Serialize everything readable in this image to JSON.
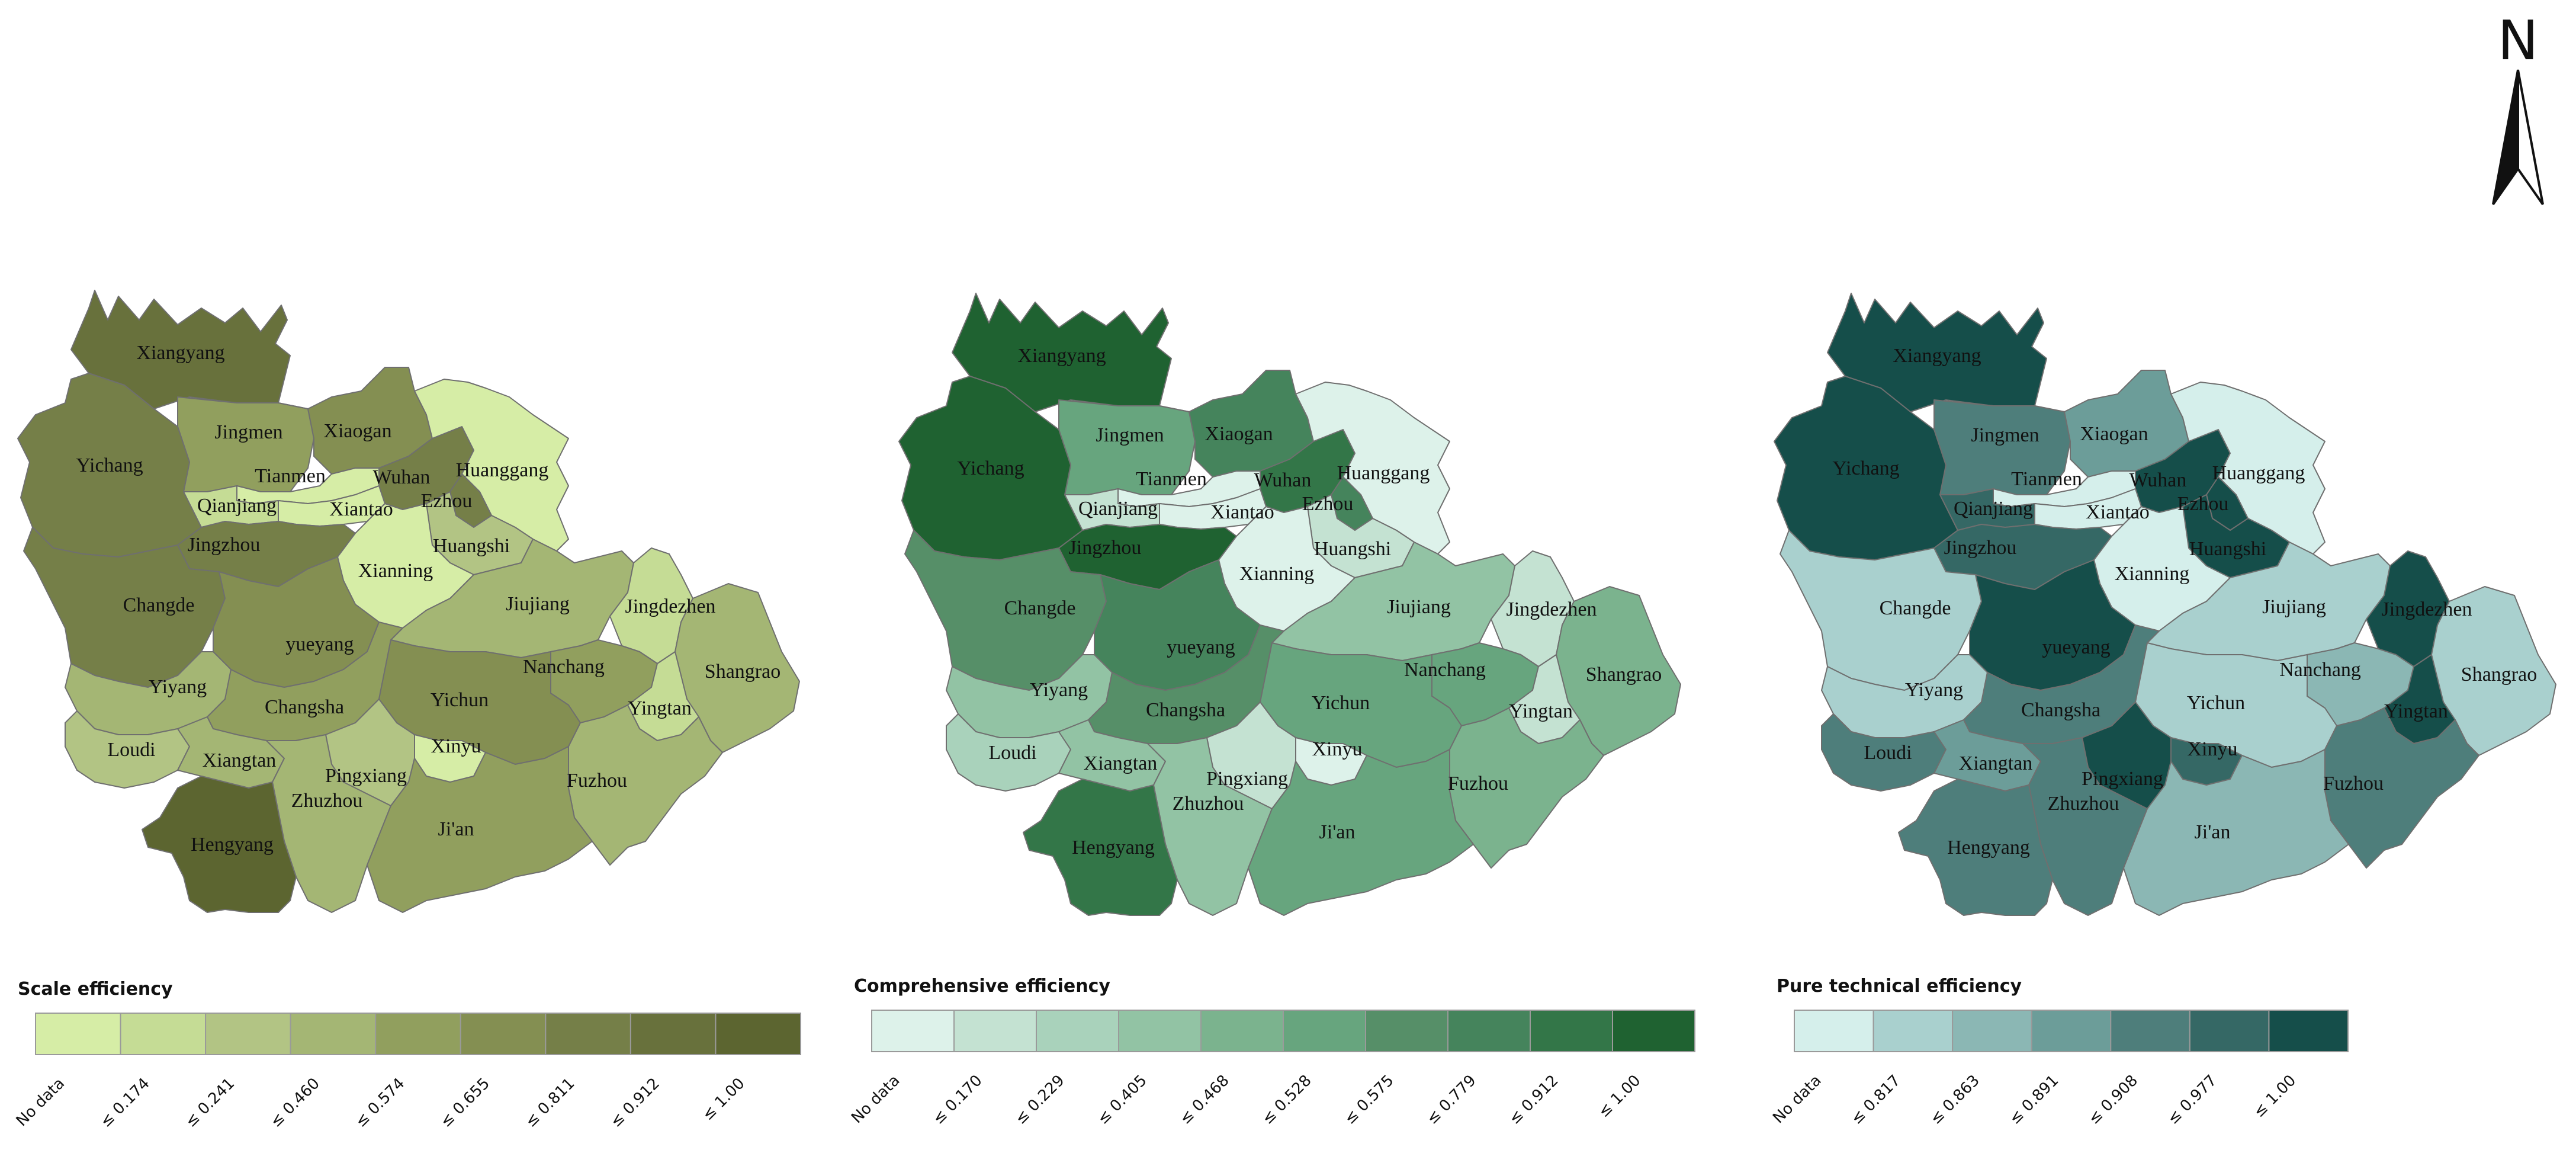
{
  "cities": [
    "Xiangyang",
    "Jingmen",
    "Xiaogan",
    "Yichang",
    "Tianmen",
    "Wuhan",
    "Huanggang",
    "Qianjiang",
    "Xiantao",
    "Ezhou",
    "Jingzhou",
    "Huangshi",
    "Xianning",
    "Changde",
    "yueyang",
    "Jiujiang",
    "Jingdezhen",
    "Nanchang",
    "Shangrao",
    "Yiyang",
    "Changsha",
    "Yichun",
    "Yingtan",
    "Loudi",
    "Xiangtan",
    "Xinyu",
    "Pingxiang",
    "Zhuzhou",
    "Fuzhou",
    "Hengyang",
    "Ji'an"
  ],
  "north_arrow": {
    "letter": "N"
  },
  "maps": [
    {
      "id": "scale",
      "legend": {
        "title": "Scale efficiency",
        "labels": [
          "No data",
          "≤ 0.174",
          "≤ 0.241",
          "≤ 0.460",
          "≤ 0.574",
          "≤ 0.655",
          "≤ 0.811",
          "≤ 0.912",
          "≤ 1.00"
        ],
        "colors": [
          "#d6eda6",
          "#c5dc95",
          "#b2c484",
          "#a4b674",
          "#919f5e",
          "#848f52",
          "#757f48",
          "#68713c",
          "#5c6530"
        ]
      },
      "city_class": {
        "Xiangyang": 7,
        "Jingmen": 4,
        "Xiaogan": 5,
        "Yichang": 6,
        "Tianmen": 0,
        "Wuhan": 6,
        "Huanggang": 0,
        "Qianjiang": 1,
        "Xiantao": 0,
        "Ezhou": 6,
        "Jingzhou": 6,
        "Huangshi": 2,
        "Xianning": 0,
        "Changde": 6,
        "yueyang": 5,
        "Jiujiang": 3,
        "Jingdezhen": 1,
        "Nanchang": 4,
        "Shangrao": 3,
        "Yiyang": 3,
        "Changsha": 4,
        "Yichun": 5,
        "Yingtan": 1,
        "Loudi": 2,
        "Xiangtan": 3,
        "Xinyu": 0,
        "Pingxiang": 2,
        "Zhuzhou": 3,
        "Fuzhou": 3,
        "Hengyang": 8,
        "Ji'an": 4
      }
    },
    {
      "id": "comprehensive",
      "legend": {
        "title": "Comprehensive efficiency",
        "labels": [
          "No data",
          "≤ 0.170",
          "≤ 0.229",
          "≤ 0.405",
          "≤ 0.468",
          "≤ 0.528",
          "≤ 0.575",
          "≤ 0.779",
          "≤ 0.912",
          "≤ 1.00"
        ],
        "colors": [
          "#ddf2ea",
          "#c4e2d2",
          "#a9d2bb",
          "#92c3a4",
          "#7bb38e",
          "#67a57e",
          "#568f68",
          "#45845c",
          "#337648",
          "#1f6231"
        ]
      },
      "city_class": {
        "Xiangyang": 9,
        "Jingmen": 5,
        "Xiaogan": 7,
        "Yichang": 9,
        "Tianmen": 0,
        "Wuhan": 8,
        "Huanggang": 0,
        "Qianjiang": 1,
        "Xiantao": 0,
        "Ezhou": 7,
        "Jingzhou": 9,
        "Huangshi": 1,
        "Xianning": 0,
        "Changde": 6,
        "yueyang": 7,
        "Jiujiang": 3,
        "Jingdezhen": 1,
        "Nanchang": 5,
        "Shangrao": 4,
        "Yiyang": 3,
        "Changsha": 6,
        "Yichun": 5,
        "Yingtan": 1,
        "Loudi": 2,
        "Xiangtan": 3,
        "Xinyu": 0,
        "Pingxiang": 1,
        "Zhuzhou": 3,
        "Fuzhou": 4,
        "Hengyang": 8,
        "Ji'an": 5
      }
    },
    {
      "id": "pure",
      "legend": {
        "title": "Pure technical efficiency",
        "labels": [
          "No data",
          "≤ 0.817",
          "≤ 0.863",
          "≤ 0.891",
          "≤ 0.908",
          "≤ 0.977",
          "≤ 1.00"
        ],
        "colors": [
          "#d5efeb",
          "#a9d0ce",
          "#8bb7b4",
          "#6c9d99",
          "#4e7e7b",
          "#356865",
          "#154e4a"
        ]
      },
      "city_class": {
        "Xiangyang": 6,
        "Jingmen": 4,
        "Xiaogan": 3,
        "Yichang": 6,
        "Tianmen": 0,
        "Wuhan": 6,
        "Huanggang": 0,
        "Qianjiang": 5,
        "Xiantao": 0,
        "Ezhou": 6,
        "Jingzhou": 5,
        "Huangshi": 6,
        "Xianning": 0,
        "Changde": 1,
        "yueyang": 6,
        "Jiujiang": 1,
        "Jingdezhen": 6,
        "Nanchang": 2,
        "Shangrao": 1,
        "Yiyang": 1,
        "Changsha": 4,
        "Yichun": 1,
        "Yingtan": 6,
        "Loudi": 4,
        "Xiangtan": 3,
        "Xinyu": 5,
        "Pingxiang": 6,
        "Zhuzhou": 4,
        "Fuzhou": 4,
        "Hengyang": 4,
        "Ji'an": 2
      }
    }
  ]
}
